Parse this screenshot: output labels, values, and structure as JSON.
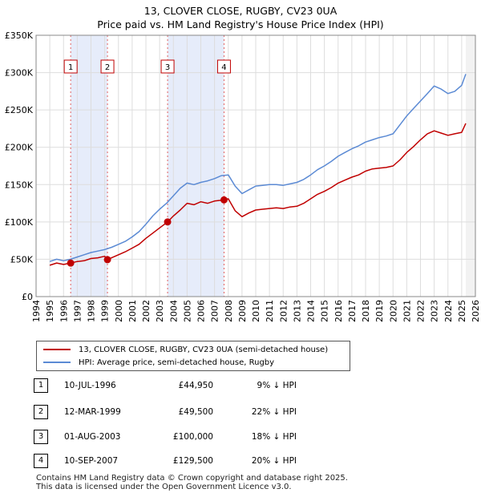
{
  "title": "13, CLOVER CLOSE, RUGBY, CV23 0UA",
  "subtitle": "Price paid vs. HM Land Registry's House Price Index (HPI)",
  "colors": {
    "property": "#c00000",
    "hpi": "#5b8ad4",
    "shade": "#e6ecfa",
    "grid": "#dddddd"
  },
  "chart_data": {
    "type": "line",
    "title": "13, CLOVER CLOSE, RUGBY, CV23 0UA",
    "subtitle": "Price paid vs. HM Land Registry's House Price Index (HPI)",
    "xlim": [
      1994,
      2026
    ],
    "ylim": [
      0,
      350000
    ],
    "x_ticks": [
      "1994",
      "1995",
      "1996",
      "1997",
      "1998",
      "1999",
      "2000",
      "2001",
      "2002",
      "2003",
      "2004",
      "2005",
      "2006",
      "2007",
      "2008",
      "2009",
      "2010",
      "2011",
      "2012",
      "2013",
      "2014",
      "2015",
      "2016",
      "2017",
      "2018",
      "2019",
      "2020",
      "2021",
      "2022",
      "2023",
      "2024",
      "2025",
      "2026"
    ],
    "y_ticks": [
      {
        "value": 0,
        "label": "£0"
      },
      {
        "value": 50000,
        "label": "£50K"
      },
      {
        "value": 100000,
        "label": "£100K"
      },
      {
        "value": 150000,
        "label": "£150K"
      },
      {
        "value": 200000,
        "label": "£200K"
      },
      {
        "value": 250000,
        "label": "£250K"
      },
      {
        "value": 300000,
        "label": "£300K"
      },
      {
        "value": 350000,
        "label": "£350K"
      }
    ],
    "grid": true,
    "legend_position": "below",
    "shaded_periods": [
      [
        1996.52,
        1999.2
      ],
      [
        2003.58,
        2007.69
      ]
    ],
    "series": [
      {
        "name": "13, CLOVER CLOSE, RUGBY, CV23 0UA (semi-detached house)",
        "color": "#c00000",
        "x": [
          1995.0,
          1995.5,
          1996.0,
          1996.52,
          1997.0,
          1997.5,
          1998.0,
          1998.5,
          1999.0,
          1999.2,
          1999.5,
          2000.0,
          2000.5,
          2001.0,
          2001.5,
          2002.0,
          2002.5,
          2003.0,
          2003.58,
          2004.0,
          2004.5,
          2005.0,
          2005.5,
          2006.0,
          2006.5,
          2007.0,
          2007.69,
          2008.0,
          2008.5,
          2009.0,
          2009.5,
          2010.0,
          2010.5,
          2011.0,
          2011.5,
          2012.0,
          2012.5,
          2013.0,
          2013.5,
          2014.0,
          2014.5,
          2015.0,
          2015.5,
          2016.0,
          2016.5,
          2017.0,
          2017.5,
          2018.0,
          2018.5,
          2019.0,
          2019.5,
          2020.0,
          2020.5,
          2021.0,
          2021.5,
          2022.0,
          2022.5,
          2023.0,
          2023.5,
          2024.0,
          2024.5,
          2025.0,
          2025.3
        ],
        "y": [
          42000,
          45000,
          43000,
          44950,
          47000,
          48000,
          51000,
          52000,
          54000,
          49500,
          52000,
          56000,
          60000,
          65000,
          70000,
          78000,
          85000,
          92000,
          100000,
          108000,
          116000,
          125000,
          123000,
          127000,
          125000,
          128000,
          129500,
          131000,
          115000,
          107000,
          112000,
          116000,
          117000,
          118000,
          119000,
          118000,
          120000,
          121000,
          125000,
          131000,
          137000,
          141000,
          146000,
          152000,
          156000,
          160000,
          163000,
          168000,
          171000,
          172000,
          173000,
          175000,
          183000,
          193000,
          201000,
          210000,
          218000,
          222000,
          219000,
          216000,
          218000,
          220000,
          232000
        ]
      },
      {
        "name": "HPI: Average price, semi-detached house, Rugby",
        "color": "#5b8ad4",
        "x": [
          1995.0,
          1995.5,
          1996.0,
          1996.5,
          1997.0,
          1997.5,
          1998.0,
          1998.5,
          1999.0,
          1999.5,
          2000.0,
          2000.5,
          2001.0,
          2001.5,
          2002.0,
          2002.5,
          2003.0,
          2003.5,
          2004.0,
          2004.5,
          2005.0,
          2005.5,
          2006.0,
          2006.5,
          2007.0,
          2007.5,
          2008.0,
          2008.5,
          2009.0,
          2009.5,
          2010.0,
          2010.5,
          2011.0,
          2011.5,
          2012.0,
          2012.5,
          2013.0,
          2013.5,
          2014.0,
          2014.5,
          2015.0,
          2015.5,
          2016.0,
          2016.5,
          2017.0,
          2017.5,
          2018.0,
          2018.5,
          2019.0,
          2019.5,
          2020.0,
          2020.5,
          2021.0,
          2021.5,
          2022.0,
          2022.5,
          2023.0,
          2023.5,
          2024.0,
          2024.5,
          2025.0,
          2025.3
        ],
        "y": [
          47000,
          50000,
          48000,
          50000,
          53000,
          56000,
          59000,
          61000,
          63000,
          66000,
          70000,
          74000,
          80000,
          87000,
          97000,
          108000,
          117000,
          125000,
          135000,
          145000,
          152000,
          150000,
          153000,
          155000,
          158000,
          162000,
          163000,
          148000,
          138000,
          143000,
          148000,
          149000,
          150000,
          150000,
          149000,
          151000,
          153000,
          157000,
          163000,
          170000,
          175000,
          181000,
          188000,
          193000,
          198000,
          202000,
          207000,
          210000,
          213000,
          215000,
          218000,
          230000,
          242000,
          252000,
          262000,
          272000,
          282000,
          278000,
          272000,
          275000,
          283000,
          298000
        ]
      }
    ],
    "sales": [
      {
        "label": "1",
        "x": 1996.52,
        "y": 44950
      },
      {
        "label": "2",
        "x": 1999.2,
        "y": 49500
      },
      {
        "label": "3",
        "x": 2003.58,
        "y": 100000
      },
      {
        "label": "4",
        "x": 2007.69,
        "y": 129500
      }
    ]
  },
  "legend": {
    "property_label": "13, CLOVER CLOSE, RUGBY, CV23 0UA (semi-detached house)",
    "hpi_label": "HPI: Average price, semi-detached house, Rugby"
  },
  "sales_table": [
    {
      "num": "1",
      "date": "10-JUL-1996",
      "price": "£44,950",
      "hpi": "9% ↓ HPI"
    },
    {
      "num": "2",
      "date": "12-MAR-1999",
      "price": "£49,500",
      "hpi": "22% ↓ HPI"
    },
    {
      "num": "3",
      "date": "01-AUG-2003",
      "price": "£100,000",
      "hpi": "18% ↓ HPI"
    },
    {
      "num": "4",
      "date": "10-SEP-2007",
      "price": "£129,500",
      "hpi": "20% ↓ HPI"
    }
  ],
  "footer": {
    "line1": "Contains HM Land Registry data © Crown copyright and database right 2025.",
    "line2": "This data is licensed under the Open Government Licence v3.0."
  }
}
